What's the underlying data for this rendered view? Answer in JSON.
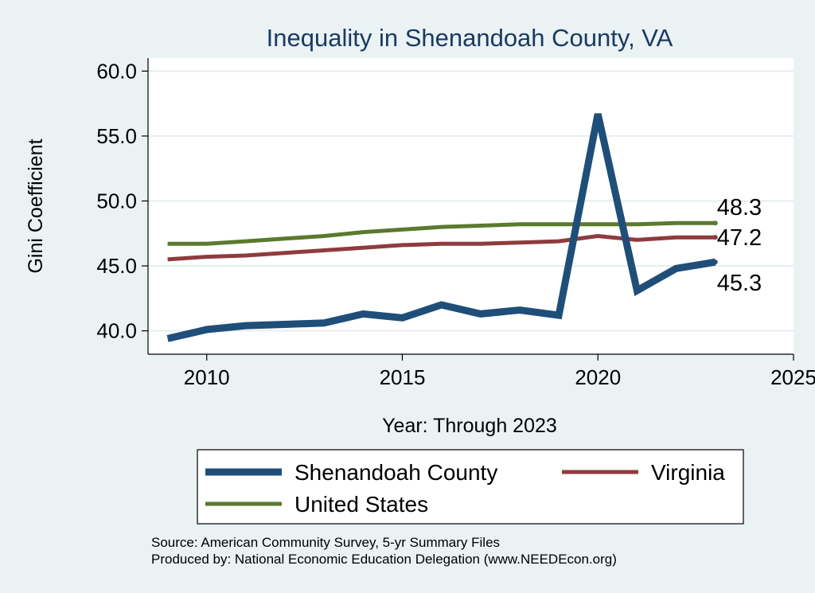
{
  "chart_data": {
    "type": "line",
    "title": "Inequality in Shenandoah County, VA",
    "xlabel": "Year: Through 2023",
    "ylabel": "Gini Coefficient",
    "xlim": [
      2008.5,
      2025
    ],
    "ylim": [
      38.2,
      61
    ],
    "xticks": [
      "2010",
      "2015",
      "2020",
      "2025"
    ],
    "yticks": [
      "40.0",
      "45.0",
      "50.0",
      "55.0",
      "60.0"
    ],
    "grid": true,
    "legend_position": "bottom",
    "x": [
      2009,
      2010,
      2011,
      2012,
      2013,
      2014,
      2015,
      2016,
      2017,
      2018,
      2019,
      2020,
      2021,
      2022,
      2023
    ],
    "series": [
      {
        "name": "Shenandoah County",
        "color": "#1f4e79",
        "values": [
          39.4,
          40.1,
          40.4,
          40.5,
          40.6,
          41.3,
          41.0,
          42.0,
          41.3,
          41.6,
          41.2,
          56.7,
          43.1,
          44.8,
          45.3
        ],
        "end_label": "45.3"
      },
      {
        "name": "Virginia",
        "color": "#8f3b3e",
        "values": [
          45.5,
          45.7,
          45.8,
          46.0,
          46.2,
          46.4,
          46.6,
          46.7,
          46.7,
          46.8,
          46.9,
          47.3,
          47.0,
          47.2,
          47.2
        ],
        "end_label": "47.2"
      },
      {
        "name": "United States",
        "color": "#5a7a2e",
        "values": [
          46.7,
          46.7,
          46.9,
          47.1,
          47.3,
          47.6,
          47.8,
          48.0,
          48.1,
          48.2,
          48.2,
          48.2,
          48.2,
          48.3,
          48.3
        ],
        "end_label": "48.3"
      }
    ]
  },
  "source_lines": [
    "Source: American Community Survey, 5-yr Summary Files",
    "Produced by: National Economic Education Delegation (www.NEEDEcon.org)"
  ]
}
